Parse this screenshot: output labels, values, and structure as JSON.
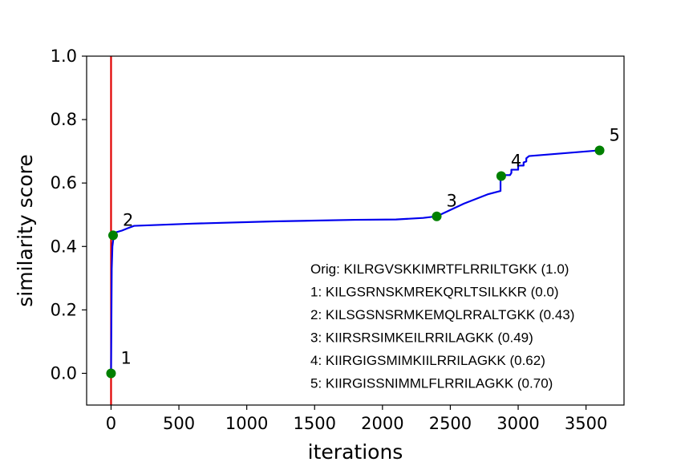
{
  "chart_data": {
    "type": "line",
    "title": "",
    "xlabel": "iterations",
    "ylabel": "similarity score",
    "xlim": [
      -180,
      3780
    ],
    "ylim": [
      -0.1,
      1.0
    ],
    "xticks": [
      0,
      500,
      1000,
      1500,
      2000,
      2500,
      3000,
      3500
    ],
    "xtick_labels": [
      "0",
      "500",
      "1000",
      "1500",
      "2000",
      "2500",
      "3000",
      "3500"
    ],
    "yticks": [
      0.0,
      0.2,
      0.4,
      0.6,
      0.8,
      1.0
    ],
    "ytick_labels": [
      "0.0",
      "0.2",
      "0.4",
      "0.6",
      "0.8",
      "1.0"
    ],
    "grid": false,
    "vline": {
      "x": 0,
      "color": "#e00000"
    },
    "series": [
      {
        "color": "#0000ee",
        "x": [
          0,
          5,
          10,
          20,
          40,
          80,
          120,
          170,
          600,
          1200,
          1800,
          2100,
          2300,
          2400,
          2450,
          2600,
          2780,
          2870,
          2870,
          2880,
          2900,
          2940,
          2950,
          2950,
          3000,
          3000,
          3040,
          3040,
          3060,
          3060,
          3080,
          3600
        ],
        "y": [
          0.0,
          0.33,
          0.4,
          0.435,
          0.445,
          0.45,
          0.457,
          0.465,
          0.472,
          0.479,
          0.484,
          0.485,
          0.49,
          0.495,
          0.505,
          0.535,
          0.565,
          0.575,
          0.615,
          0.622,
          0.625,
          0.625,
          0.632,
          0.642,
          0.642,
          0.655,
          0.655,
          0.665,
          0.668,
          0.678,
          0.685,
          0.703
        ]
      }
    ],
    "points": {
      "color": "#008000",
      "x": [
        0,
        15,
        2400,
        2875,
        3600
      ],
      "y": [
        0.0,
        0.435,
        0.495,
        0.622,
        0.703
      ],
      "labels": [
        "1",
        "2",
        "3",
        "4",
        "5"
      ]
    },
    "annotations": [
      "Orig: KILRGVSKKIMRTFLRRILTGKK (1.0)",
      "1: KILGSRNSKMREKQRLTSILKKR  (0.0)",
      "2: KILSGSNSRMKEMQLRRALTGKK (0.43)",
      "3: KIIRSRSIMKEILRRILAGKK (0.49)",
      "4: KIIRGIGSMIMKIILRRILAGKK (0.62)",
      "5: KIIRGISSNIMMLFLRRILAGKK (0.70)"
    ]
  }
}
